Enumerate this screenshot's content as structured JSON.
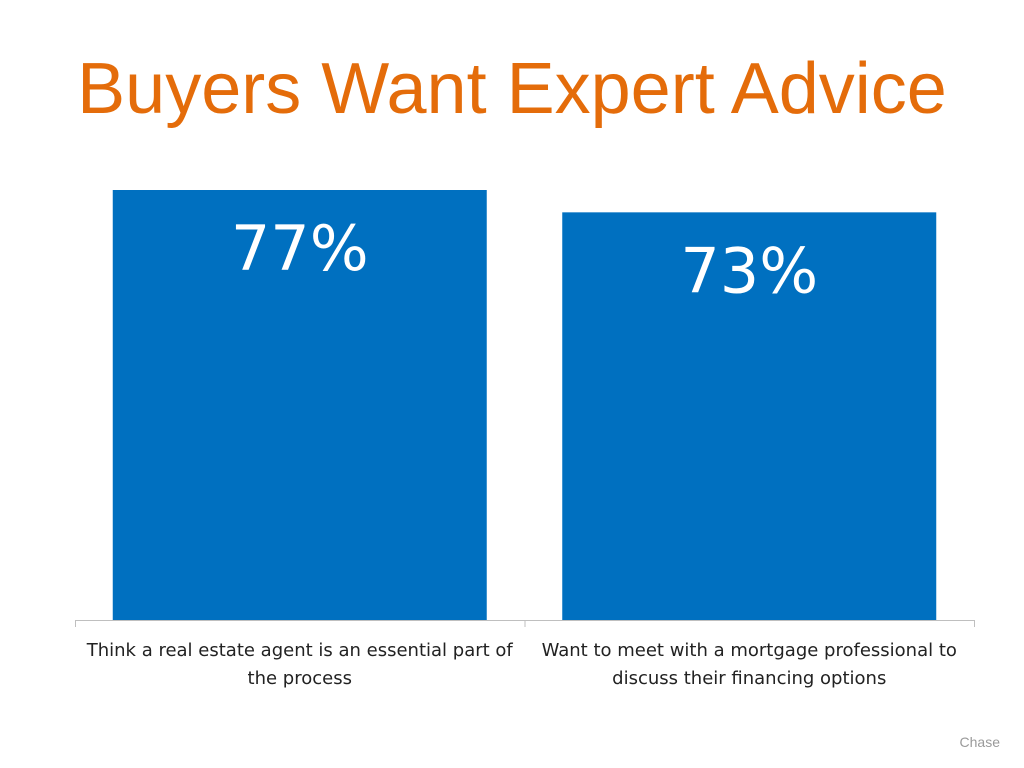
{
  "title": "Buyers Want Expert Advice",
  "source": "Chase",
  "colors": {
    "title": "#E46C0A",
    "bar": "#0070C0",
    "axis": "#BFBFBF",
    "bar_label": "#FFFFFF"
  },
  "chart_data": {
    "type": "bar",
    "categories": [
      [
        "Think a real estate agent is an essential part of",
        "the process"
      ],
      [
        "Want to meet with a mortgage professional to",
        "discuss their financing options"
      ]
    ],
    "values": [
      77,
      73
    ],
    "data_labels": [
      "77%",
      "73%"
    ],
    "ylim": [
      0,
      77
    ],
    "grid": false,
    "legend": "none",
    "xlabel": "",
    "ylabel": ""
  }
}
